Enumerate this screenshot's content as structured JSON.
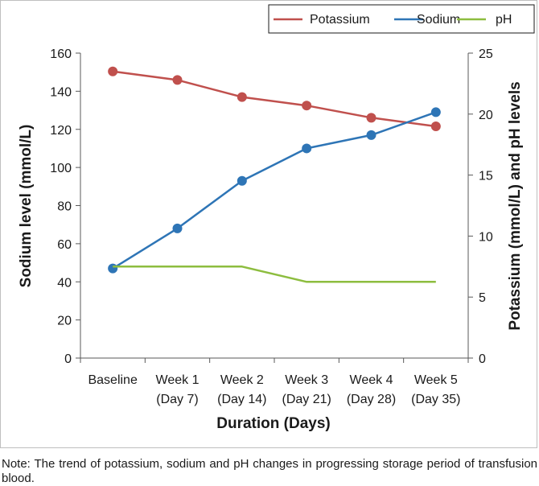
{
  "chart_data": {
    "type": "line",
    "categories": [
      [
        "Baseline",
        ""
      ],
      [
        "Week 1",
        "(Day 7)"
      ],
      [
        "Week 2",
        "(Day 14)"
      ],
      [
        "Week 3",
        "(Day 21)"
      ],
      [
        "Week 4",
        "(Day 28)"
      ],
      [
        "Week 5",
        "(Day 35)"
      ]
    ],
    "xlabel": "Duration (Days)",
    "ylabel_left": "Sodium level (mmol/L)",
    "ylabel_right": "Potassium (mmol/L) and pH levels",
    "ylim_left": [
      0,
      160
    ],
    "yticks_left": [
      0,
      20,
      40,
      60,
      80,
      100,
      120,
      140,
      160
    ],
    "ylim_right": [
      0,
      25
    ],
    "yticks_right": [
      0,
      5,
      10,
      15,
      20,
      25
    ],
    "legend_position": "top-right",
    "series": [
      {
        "name": "Potassium",
        "axis": "right",
        "color": "#c0504d",
        "markers": true,
        "values": [
          23.5,
          22.8,
          21.4,
          20.7,
          19.7,
          19.0
        ]
      },
      {
        "name": "Sodium",
        "axis": "left",
        "color": "#2e75b6",
        "markers": true,
        "values": [
          47,
          68,
          93,
          110,
          117,
          129
        ]
      },
      {
        "name": "pH",
        "axis": "right",
        "color": "#8dbd3f",
        "markers": false,
        "values": [
          7.5,
          7.5,
          7.5,
          6.25,
          6.25,
          6.25
        ]
      }
    ]
  },
  "note": "Note: The trend of potassium, sodium and pH changes in progressing storage period of transfusion blood."
}
